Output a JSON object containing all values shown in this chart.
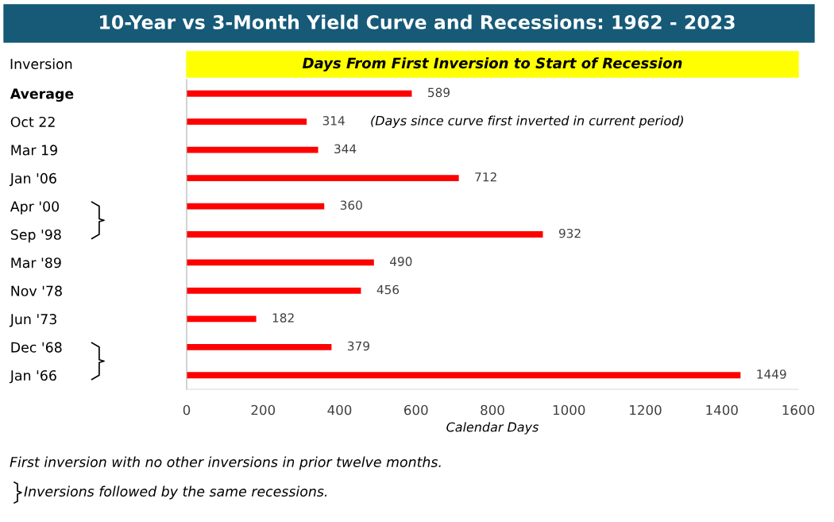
{
  "chart_data": {
    "type": "bar",
    "orientation": "horizontal",
    "title": "10-Year vs 3-Month Yield Curve and Recessions: 1962 - 2023",
    "subtitle": "Days From First Inversion to Start of Recession",
    "ylabel": "Inversion",
    "xlabel": "Calendar Days",
    "categories": [
      "Average",
      "Oct 22",
      "Mar 19",
      "Jan '06",
      "Apr '00",
      "Sep '98",
      "Mar '89",
      "Nov '78",
      "Jun '73",
      "Dec '68",
      "Jan '66"
    ],
    "values": [
      589,
      314,
      344,
      712,
      360,
      932,
      490,
      456,
      182,
      379,
      1449
    ],
    "color": "#ff0000",
    "xlim": [
      0,
      1600
    ],
    "xticks": [
      0,
      200,
      400,
      600,
      800,
      1000,
      1200,
      1400,
      1600
    ],
    "data_labels": true,
    "grid": false,
    "legend": false,
    "annotations": [
      "(Days since curve first inverted in current period)",
      "First inversion with no other inversions in prior twelve months.",
      "Inversions followed by the same recessions."
    ]
  }
}
